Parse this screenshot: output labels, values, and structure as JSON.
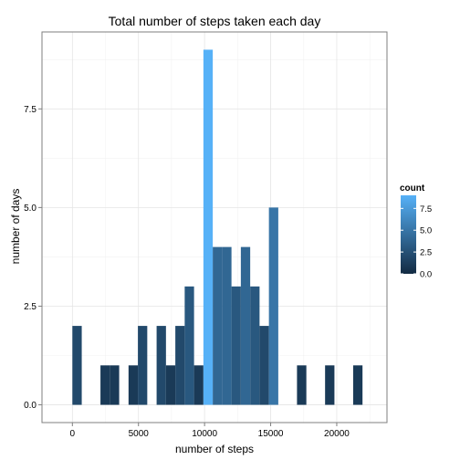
{
  "chart_data": {
    "type": "bar",
    "title": "Total number of steps taken each day",
    "xlabel": "number of steps",
    "ylabel": "number of days",
    "xlim": [
      -2300,
      23800
    ],
    "ylim": [
      -0.45,
      9.45
    ],
    "x_ticks": [
      0,
      5000,
      10000,
      15000,
      20000
    ],
    "x_tick_labels": [
      "0",
      "5000",
      "10000",
      "15000",
      "20000"
    ],
    "y_ticks": [
      0,
      2.5,
      5,
      7.5
    ],
    "y_tick_labels": [
      "0.0",
      "2.5",
      "5.0",
      "7.5"
    ],
    "grid": true,
    "legend": {
      "title": "count",
      "position": "right",
      "labels": [
        "0.0",
        "2.5",
        "5.0",
        "7.5"
      ],
      "values": [
        0,
        2.5,
        5,
        7.5
      ],
      "range": [
        0,
        9
      ],
      "color_low": "#132B43",
      "color_high": "#56B1F7"
    },
    "bin_width": 708,
    "bins": [
      {
        "x": 354,
        "count": 2
      },
      {
        "x": 2478,
        "count": 1
      },
      {
        "x": 3186,
        "count": 1
      },
      {
        "x": 4602,
        "count": 1
      },
      {
        "x": 5310,
        "count": 2
      },
      {
        "x": 6726,
        "count": 2
      },
      {
        "x": 7434,
        "count": 1
      },
      {
        "x": 8142,
        "count": 2
      },
      {
        "x": 8850,
        "count": 3
      },
      {
        "x": 9558,
        "count": 1
      },
      {
        "x": 10266,
        "count": 9
      },
      {
        "x": 10974,
        "count": 4
      },
      {
        "x": 11682,
        "count": 4
      },
      {
        "x": 12390,
        "count": 3
      },
      {
        "x": 13098,
        "count": 4
      },
      {
        "x": 13806,
        "count": 3
      },
      {
        "x": 14514,
        "count": 2
      },
      {
        "x": 15222,
        "count": 5
      },
      {
        "x": 17346,
        "count": 1
      },
      {
        "x": 19470,
        "count": 1
      },
      {
        "x": 21594,
        "count": 1
      }
    ]
  }
}
